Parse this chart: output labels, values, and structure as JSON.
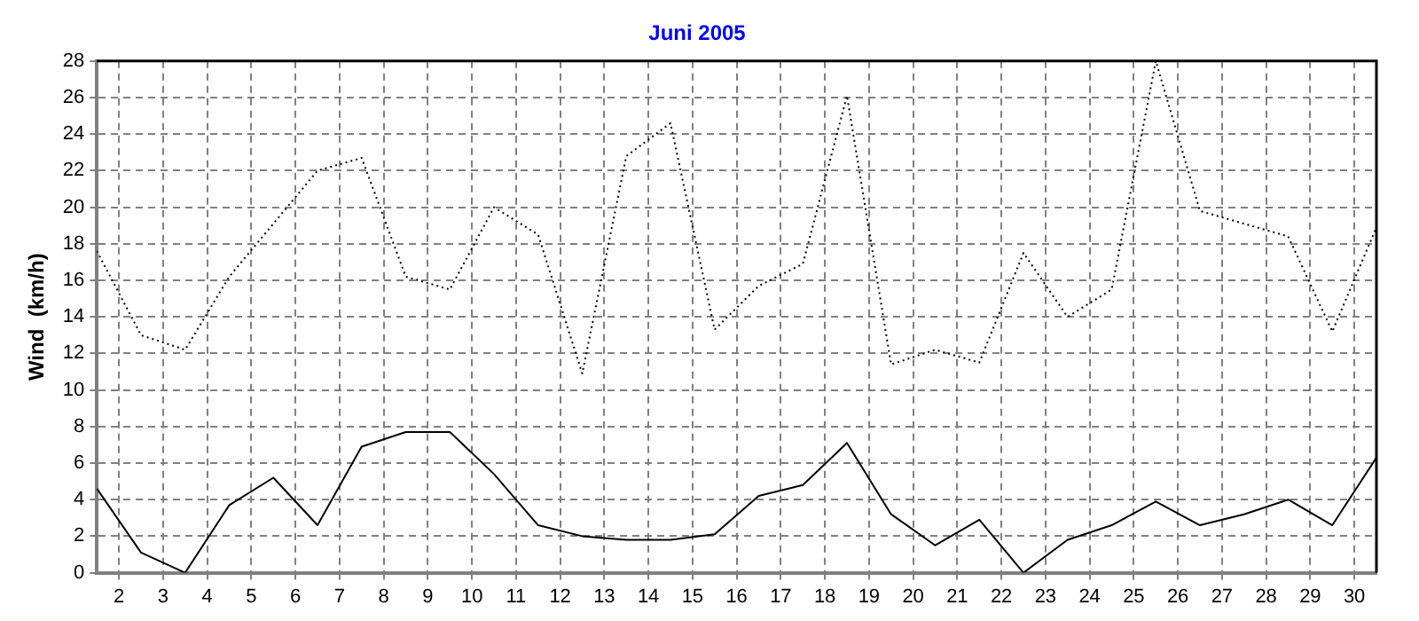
{
  "chart_data": {
    "type": "line",
    "title": "Juni 2005",
    "ylabel": "Wind  (km/h)",
    "x": [
      1.5,
      2.5,
      3.5,
      4.5,
      5.5,
      6.5,
      7.5,
      8.5,
      9.5,
      10.5,
      11.5,
      12.5,
      13.5,
      14.5,
      15.5,
      16.5,
      17.5,
      18.5,
      19.5,
      20.5,
      21.5,
      22.5,
      23.5,
      24.5,
      25.5,
      26.5,
      27.5,
      28.5,
      29.5,
      30.5
    ],
    "series": [
      {
        "color": "#000000",
        "line_style": "dotted",
        "values": [
          17.6,
          13,
          12.2,
          16.2,
          19.1,
          22,
          22.7,
          16.2,
          15.5,
          20,
          18.5,
          10.9,
          22.8,
          24.6,
          13.3,
          15.7,
          16.9,
          26.1,
          11.4,
          12.2,
          11.5,
          17.5,
          14,
          15.5,
          28,
          19.8,
          19.1,
          18.4,
          13.2,
          18.9
        ]
      },
      {
        "color": "#000000",
        "line_style": "solid",
        "values": [
          4.6,
          1.1,
          0,
          3.7,
          5.2,
          2.6,
          6.9,
          7.7,
          7.7,
          5.4,
          2.6,
          2,
          1.8,
          1.8,
          2.1,
          4.2,
          4.8,
          7.1,
          3.2,
          1.5,
          2.9,
          0,
          1.8,
          2.6,
          3.9,
          2.6,
          3.2,
          4,
          2.6,
          6.3
        ]
      }
    ],
    "xlim": [
      1.5,
      30.5
    ],
    "xticks": [
      2,
      3,
      4,
      5,
      6,
      7,
      8,
      9,
      10,
      11,
      12,
      13,
      14,
      15,
      16,
      17,
      18,
      19,
      20,
      21,
      22,
      23,
      24,
      25,
      26,
      27,
      28,
      29,
      30
    ],
    "ylim": [
      0,
      28
    ],
    "yticks": [
      0,
      2,
      4,
      6,
      8,
      10,
      12,
      14,
      16,
      18,
      20,
      22,
      24,
      26,
      28
    ],
    "grid": true,
    "legend": false,
    "marker": "none"
  }
}
